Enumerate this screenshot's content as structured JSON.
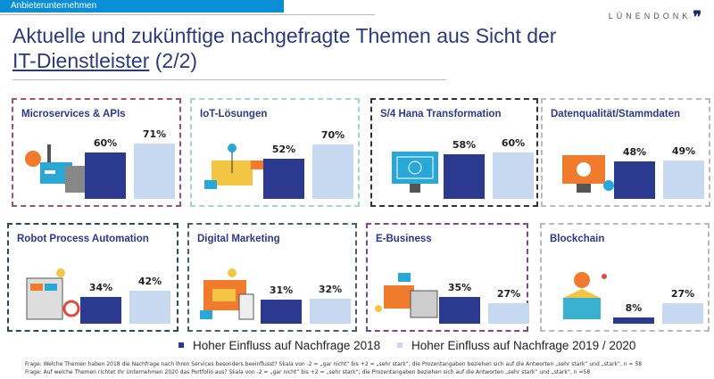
{
  "header": {
    "banner": "Anbieterunternehmen",
    "logo": "LÜNENDONK",
    "logo_mark": "❞",
    "title_line1": "Aktuelle und zukünftige nachgefragte Themen aus Sicht der",
    "title_link": "IT-Dienstleister",
    "title_suffix": " (2/2)"
  },
  "colors": {
    "series_2018": "#2b3990",
    "series_2019_2020": "#c6d9f1",
    "banner": "#0a8fd6"
  },
  "chart_data": {
    "type": "bar",
    "unit": "%",
    "series": [
      {
        "name": "Hoher Einfluss auf Nachfrage 2018",
        "color": "#2b3990"
      },
      {
        "name": "Hoher Einfluss auf Nachfrage 2019 / 2020",
        "color": "#c6d9f1"
      }
    ],
    "panels": [
      {
        "title": "Microservices & APIs",
        "values": [
          60,
          71
        ],
        "labels": [
          "60%",
          "71%"
        ],
        "border": "#a0507a",
        "icon": "api-laptop-icon"
      },
      {
        "title": "IoT-Lösungen",
        "values": [
          52,
          70
        ],
        "labels": [
          "52%",
          "70%"
        ],
        "border": "#9fd4dc",
        "icon": "iot-network-icon"
      },
      {
        "title": "S/4 Hana Transformation",
        "values": [
          58,
          60
        ],
        "labels": [
          "58%",
          "60%"
        ],
        "border": "#333333",
        "icon": "blueprint-monitor-icon"
      },
      {
        "title": "Datenqualität/Stammdaten",
        "values": [
          48,
          49
        ],
        "labels": [
          "48%",
          "49%"
        ],
        "border": "#bbbbbb",
        "icon": "data-robot-icon"
      },
      {
        "title": "Robot Process Automation",
        "values": [
          34,
          42
        ],
        "labels": [
          "34%",
          "42%"
        ],
        "border": "#2c4a5e",
        "icon": "automation-dashboard-icon"
      },
      {
        "title": "Digital Marketing",
        "values": [
          31,
          32
        ],
        "labels": [
          "31%",
          "32%"
        ],
        "border": "#4a6070",
        "icon": "marketing-screen-icon"
      },
      {
        "title": "E-Business",
        "values": [
          35,
          27
        ],
        "labels": [
          "35%",
          "27%"
        ],
        "border": "#7a4a8a",
        "icon": "ebusiness-bank-icon"
      },
      {
        "title": "Blockchain",
        "values": [
          8,
          27
        ],
        "labels": [
          "8%",
          "27%"
        ],
        "border": "#bbbbbb",
        "icon": "idea-box-icon"
      }
    ],
    "legend": "bottom"
  },
  "footer": {
    "line1": "Frage: Welche Themen haben 2018 die Nachfrage nach Ihren Services besonders beeinflusst? Skala von -2 = „gar nicht“ bis +2 = „sehr stark“; die Prozentangaben beziehen sich auf die Antworten „sehr stark“ und „stark“, n = 58",
    "line2": "Frage: Auf welche Themen richtet Ihr Unternehmen 2020 das Portfolio aus? Skala von -2 = „gar nicht“ bis +2 = „sehr stark“; die Prozentangaben beziehen sich auf die Antworten „sehr stark“ und „stark“, n =58"
  }
}
